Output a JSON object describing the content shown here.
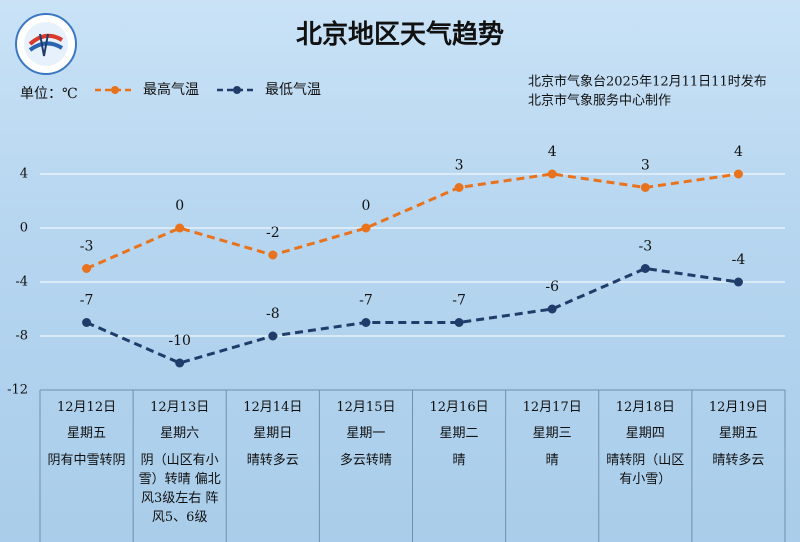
{
  "chart_data": {
    "type": "line",
    "title": "北京地区天气趋势",
    "unit_label": "单位：℃",
    "issuer": "北京市气象台2025年12月11日11时发布",
    "producer": "北京市气象服务中心制作",
    "categories": [
      "12月12日",
      "12月13日",
      "12月14日",
      "12月15日",
      "12月16日",
      "12月17日",
      "12月18日",
      "12月19日"
    ],
    "weekdays": [
      "星期五",
      "星期六",
      "星期日",
      "星期一",
      "星期二",
      "星期三",
      "星期四",
      "星期五"
    ],
    "weather": [
      "阴有中雪转阴",
      "阴（山区有小雪）转晴 偏北风3级左右 阵风5、6级",
      "晴转多云",
      "多云转晴",
      "晴",
      "晴",
      "晴转阴（山区有小雪）",
      "晴转多云"
    ],
    "series": [
      {
        "name": "最高气温",
        "color": "#e8731c",
        "values": [
          -3,
          0,
          -2,
          0,
          3,
          4,
          3,
          4
        ]
      },
      {
        "name": "最低气温",
        "color": "#1f3c6b",
        "values": [
          -7,
          -10,
          -8,
          -7,
          -7,
          -6,
          -3,
          -4
        ]
      }
    ],
    "ylim": [
      -12,
      8
    ],
    "yticks": [
      4,
      0,
      -4,
      -8,
      -12
    ],
    "grid": true
  }
}
